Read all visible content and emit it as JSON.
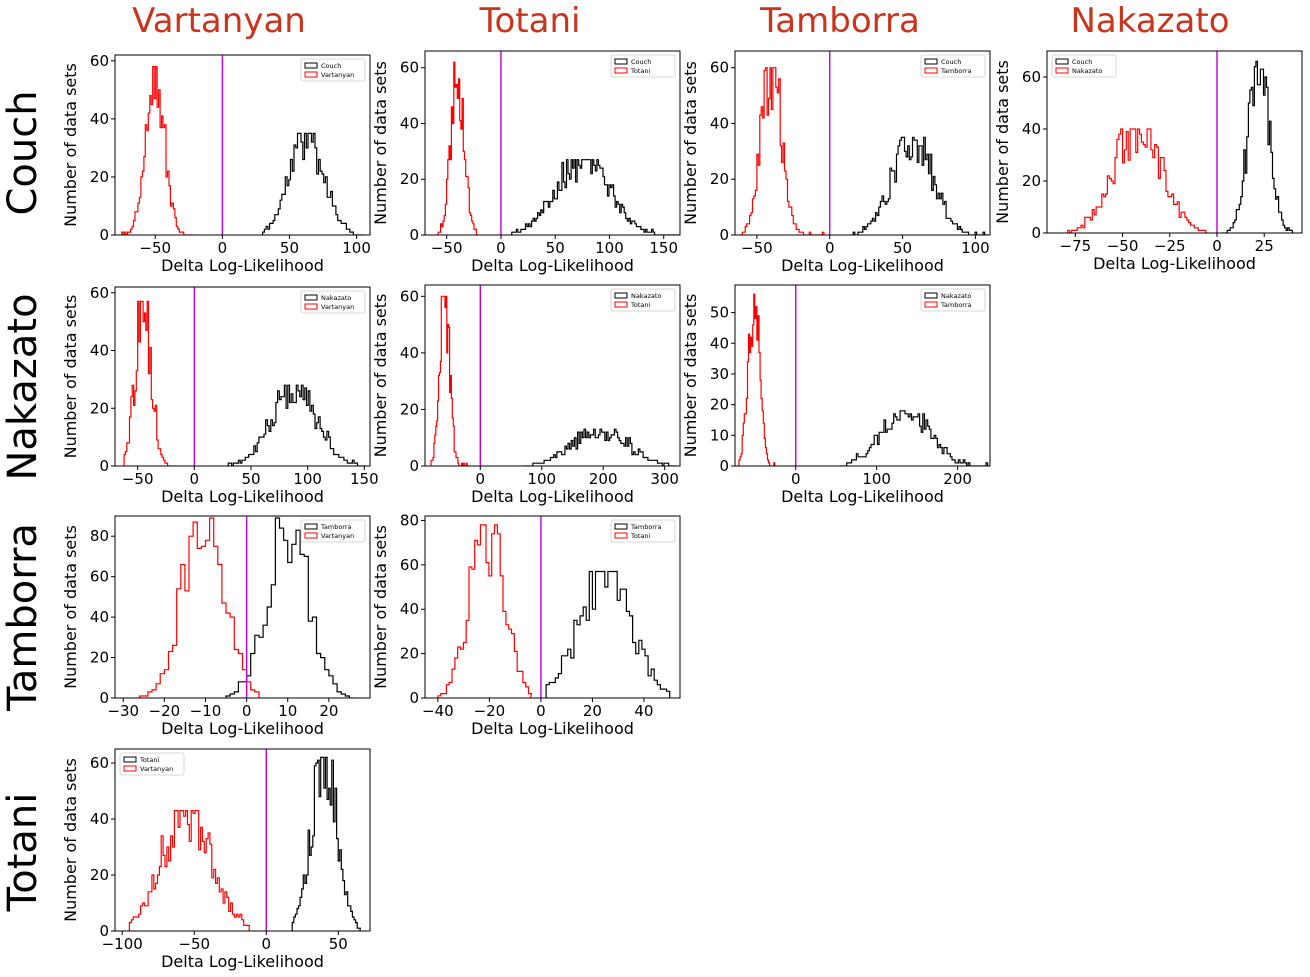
{
  "column_titles": [
    "Vartanyan",
    "Totani",
    "Tamborra",
    "Nakazato"
  ],
  "row_titles": [
    "Couch",
    "Nakazato",
    "Tamborra",
    "Totani"
  ],
  "colors": {
    "title": "#c8341c",
    "series_black": "#000000",
    "series_red": "#ff0000",
    "zero_line": "#c000e0"
  },
  "chart_data": [
    {
      "id": "couch-vartanyan",
      "type": "histogram",
      "xlabel": "Delta Log-Likelihood",
      "ylabel": "Number of data sets",
      "xlim": [
        -80,
        110
      ],
      "ylim": [
        0,
        62
      ],
      "xticks": [
        -50,
        0,
        50,
        100
      ],
      "yticks": [
        0,
        20,
        40,
        60
      ],
      "vline": 0,
      "legend_position": "upper-right",
      "series": [
        {
          "name": "Couch",
          "color": "black",
          "mean": 63,
          "sd": 13,
          "peak": 35,
          "bin": 1.3,
          "range": [
            30,
            105
          ],
          "seed": 11
        },
        {
          "name": "Vartanyan",
          "color": "red",
          "mean": -50,
          "sd": 7,
          "peak": 58,
          "bin": 1.1,
          "range": [
            -75,
            -22
          ],
          "seed": 12
        }
      ]
    },
    {
      "id": "couch-totani",
      "type": "histogram",
      "xlabel": "Delta Log-Likelihood",
      "ylabel": "Number of data sets",
      "xlim": [
        -70,
        165
      ],
      "ylim": [
        0,
        66
      ],
      "xticks": [
        -50,
        0,
        50,
        100,
        150
      ],
      "yticks": [
        0,
        20,
        40,
        60
      ],
      "vline": 0,
      "legend_position": "upper-right",
      "series": [
        {
          "name": "Couch",
          "color": "black",
          "mean": 75,
          "sd": 25,
          "peak": 27,
          "bin": 1.4,
          "range": [
            10,
            165
          ],
          "seed": 21
        },
        {
          "name": "Totani",
          "color": "red",
          "mean": -40,
          "sd": 6,
          "peak": 62,
          "bin": 1.1,
          "range": [
            -60,
            -22
          ],
          "seed": 22
        }
      ]
    },
    {
      "id": "couch-tamborra",
      "type": "histogram",
      "xlabel": "Delta Log-Likelihood",
      "ylabel": "Number of data sets",
      "xlim": [
        -65,
        110
      ],
      "ylim": [
        0,
        66
      ],
      "xticks": [
        -50,
        0,
        50,
        100
      ],
      "yticks": [
        0,
        20,
        40,
        60
      ],
      "vline": 0,
      "legend_position": "upper-right",
      "series": [
        {
          "name": "Couch",
          "color": "black",
          "mean": 57,
          "sd": 14,
          "peak": 35,
          "bin": 1.1,
          "range": [
            15,
            108
          ],
          "seed": 31
        },
        {
          "name": "Tamborra",
          "color": "red",
          "mean": -40,
          "sd": 7,
          "peak": 60,
          "bin": 1.0,
          "range": [
            -62,
            -4
          ],
          "seed": 32
        }
      ]
    },
    {
      "id": "couch-nakazato",
      "type": "histogram",
      "xlabel": "Delta Log-Likelihood",
      "ylabel": "Number of data sets",
      "xlim": [
        -90,
        45
      ],
      "ylim": [
        0,
        70
      ],
      "xticks": [
        -75,
        -50,
        -25,
        0,
        25
      ],
      "yticks": [
        0,
        20,
        40,
        60
      ],
      "vline": 0,
      "legend_position": "upper-left",
      "series": [
        {
          "name": "Couch",
          "color": "black",
          "mean": 22,
          "sd": 5.5,
          "peak": 66,
          "bin": 0.8,
          "range": [
            3,
            40
          ],
          "seed": 41
        },
        {
          "name": "Nakazato",
          "color": "red",
          "mean": -42,
          "sd": 13,
          "peak": 40,
          "bin": 1.0,
          "range": [
            -80,
            -5
          ],
          "seed": 42
        }
      ]
    },
    {
      "id": "nakazato-vartanyan",
      "type": "histogram",
      "xlabel": "Delta Log-Likelihood",
      "ylabel": "Number of data sets",
      "xlim": [
        -70,
        155
      ],
      "ylim": [
        0,
        62
      ],
      "xticks": [
        -50,
        0,
        50,
        100,
        150
      ],
      "yticks": [
        0,
        20,
        40,
        60
      ],
      "vline": 0,
      "legend_position": "upper-right",
      "series": [
        {
          "name": "Nakazato",
          "color": "black",
          "mean": 88,
          "sd": 20,
          "peak": 28,
          "bin": 1.5,
          "range": [
            30,
            150
          ],
          "seed": 51
        },
        {
          "name": "Vartanyan",
          "color": "red",
          "mean": -45,
          "sd": 7,
          "peak": 57,
          "bin": 1.2,
          "range": [
            -62,
            -18
          ],
          "seed": 52
        }
      ]
    },
    {
      "id": "nakazato-totani",
      "type": "histogram",
      "xlabel": "Delta Log-Likelihood",
      "ylabel": "Number of data sets",
      "xlim": [
        -90,
        325
      ],
      "ylim": [
        0,
        64
      ],
      "xticks": [
        0,
        100,
        200,
        300
      ],
      "yticks": [
        0,
        20,
        40,
        60
      ],
      "vline": 0,
      "legend_position": "upper-right",
      "series": [
        {
          "name": "Nakazato",
          "color": "black",
          "mean": 195,
          "sd": 45,
          "peak": 13,
          "bin": 2.6,
          "range": [
            70,
            320
          ],
          "seed": 61
        },
        {
          "name": "Totani",
          "color": "red",
          "mean": -58,
          "sd": 8,
          "peak": 60,
          "bin": 1.5,
          "range": [
            -80,
            -18
          ],
          "seed": 62
        }
      ]
    },
    {
      "id": "nakazato-tamborra",
      "type": "histogram",
      "xlabel": "Delta Log-Likelihood",
      "ylabel": "Number of data sets",
      "xlim": [
        -75,
        240
      ],
      "ylim": [
        0,
        59
      ],
      "xticks": [
        0,
        100,
        200
      ],
      "yticks": [
        0,
        10,
        20,
        30,
        40,
        50
      ],
      "vline": 0,
      "legend_position": "upper-right",
      "series": [
        {
          "name": "Nakazato",
          "color": "black",
          "mean": 135,
          "sd": 30,
          "peak": 18,
          "bin": 2.0,
          "range": [
            55,
            238
          ],
          "seed": 71
        },
        {
          "name": "Tamborra",
          "color": "red",
          "mean": -52,
          "sd": 7,
          "peak": 56,
          "bin": 1.3,
          "range": [
            -70,
            -25
          ],
          "seed": 72
        }
      ]
    },
    {
      "id": "tamborra-vartanyan",
      "type": "histogram",
      "xlabel": "Delta Log-Likelihood",
      "ylabel": "Number of data sets",
      "xlim": [
        -32,
        30
      ],
      "ylim": [
        0,
        90
      ],
      "xticks": [
        -30,
        -20,
        -10,
        0,
        10,
        20
      ],
      "yticks": [
        0,
        20,
        40,
        60,
        80
      ],
      "vline": 0,
      "legend_position": "upper-right",
      "series": [
        {
          "name": "Tamborra",
          "color": "black",
          "mean": 10,
          "sd": 5,
          "peak": 89,
          "bin": 1.0,
          "range": [
            -5,
            26
          ],
          "seed": 81
        },
        {
          "name": "Vartanyan",
          "color": "red",
          "mean": -10.5,
          "sd": 5,
          "peak": 89,
          "bin": 1.0,
          "range": [
            -27,
            3
          ],
          "seed": 82
        }
      ]
    },
    {
      "id": "tamborra-totani",
      "type": "histogram",
      "xlabel": "Delta Log-Likelihood",
      "ylabel": "Number of data sets",
      "xlim": [
        -45,
        54
      ],
      "ylim": [
        0,
        82
      ],
      "xticks": [
        -40,
        -20,
        0,
        20,
        40
      ],
      "yticks": [
        0,
        20,
        40,
        60,
        80
      ],
      "vline": 0,
      "legend_position": "upper-right",
      "series": [
        {
          "name": "Tamborra",
          "color": "black",
          "mean": 25,
          "sd": 10,
          "peak": 57,
          "bin": 1.2,
          "range": [
            2,
            50
          ],
          "seed": 91
        },
        {
          "name": "Totani",
          "color": "red",
          "mean": -21,
          "sd": 6.5,
          "peak": 78,
          "bin": 1.1,
          "range": [
            -40,
            -4
          ],
          "seed": 92
        }
      ]
    },
    {
      "id": "totani-vartanyan",
      "type": "histogram",
      "xlabel": "Delta Log-Likelihood",
      "ylabel": "Number of data sets",
      "xlim": [
        -105,
        72
      ],
      "ylim": [
        0,
        65
      ],
      "xticks": [
        -100,
        -50,
        0,
        50
      ],
      "yticks": [
        0,
        20,
        40,
        60
      ],
      "vline": 0,
      "legend_position": "upper-left",
      "series": [
        {
          "name": "Totani",
          "color": "black",
          "mean": 40,
          "sd": 9,
          "peak": 62,
          "bin": 1.1,
          "range": [
            18,
            65
          ],
          "seed": 101
        },
        {
          "name": "Vartanyan",
          "color": "red",
          "mean": -55,
          "sd": 17,
          "peak": 43,
          "bin": 1.3,
          "range": [
            -95,
            -12
          ],
          "seed": 102
        }
      ]
    }
  ]
}
